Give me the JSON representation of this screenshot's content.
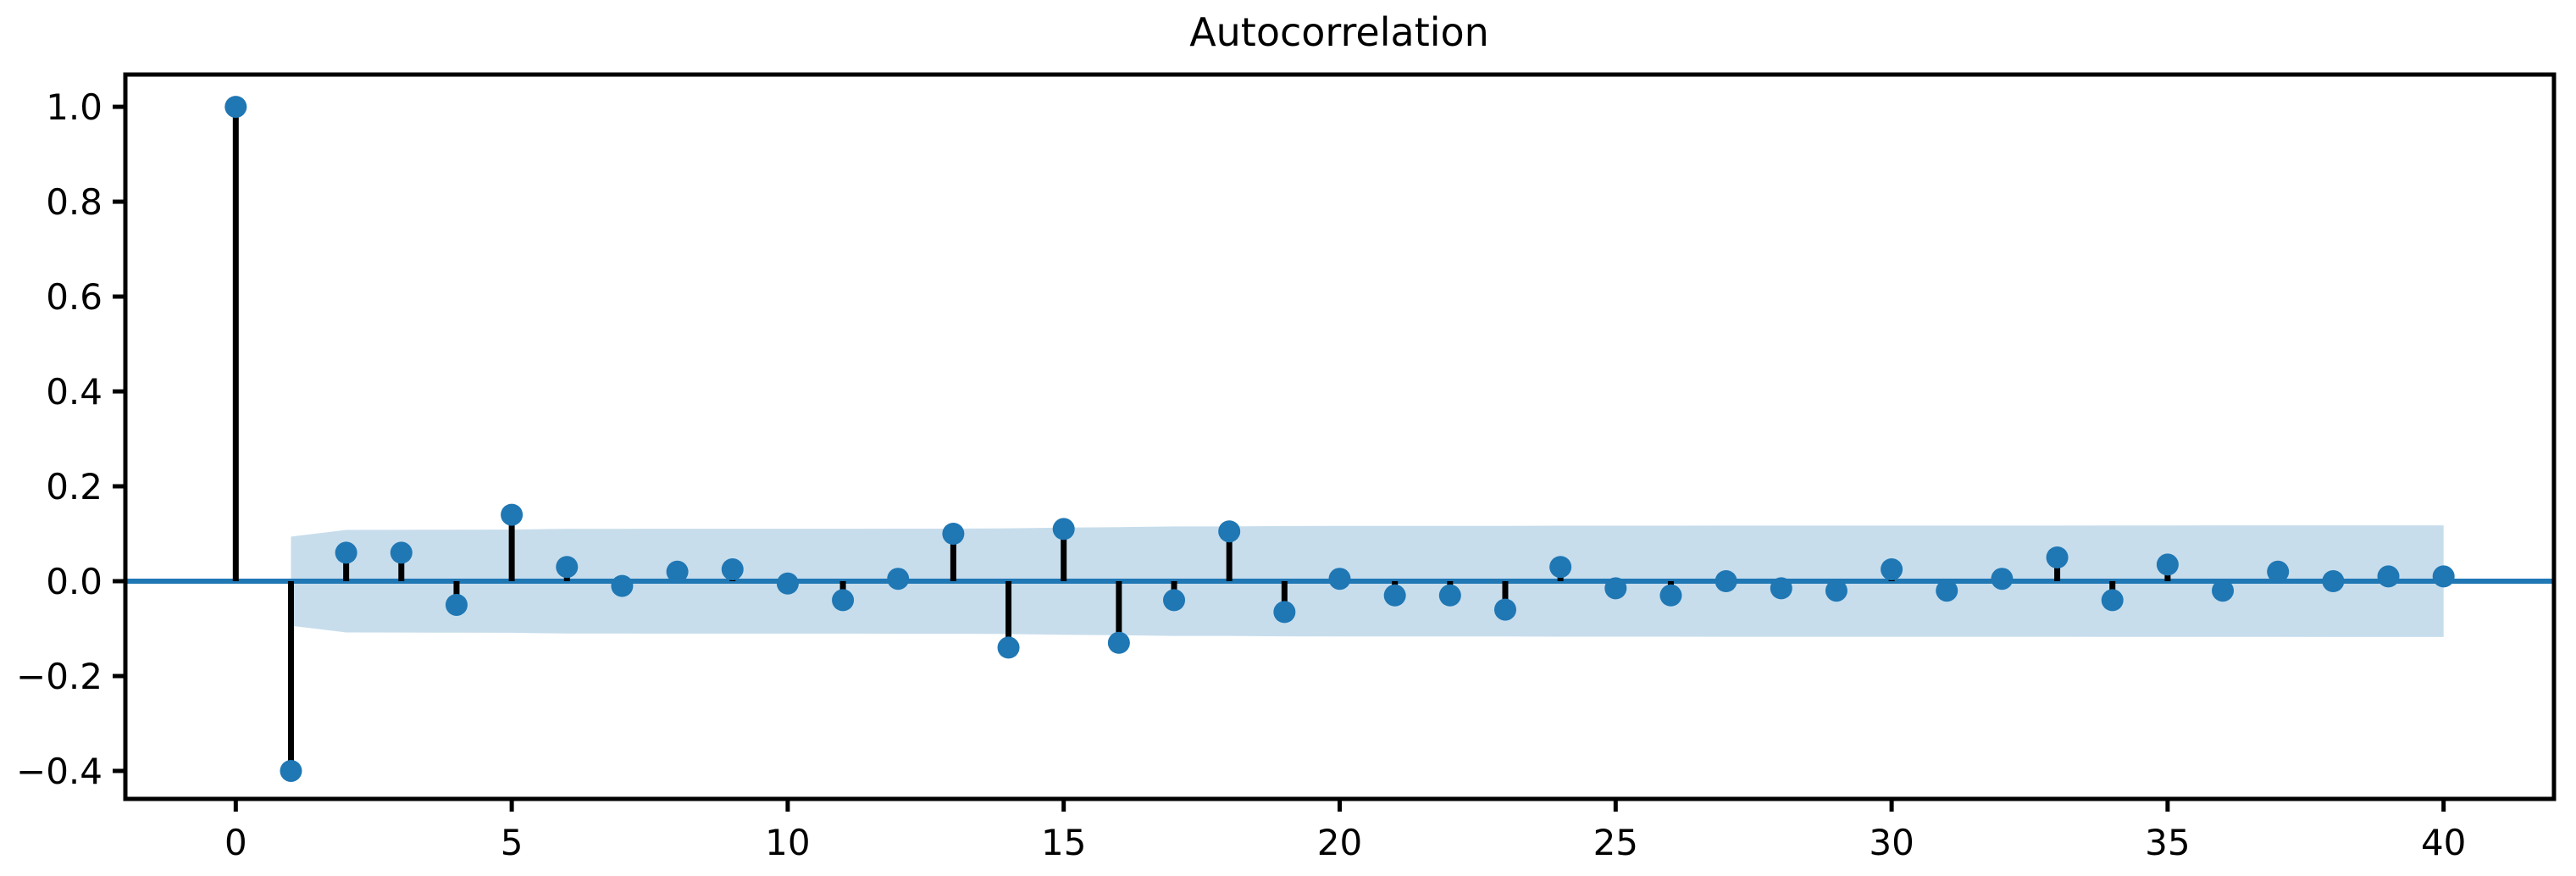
{
  "chart_data": {
    "type": "stem",
    "title": "Autocorrelation",
    "xlabel": "",
    "ylabel": "",
    "x": [
      0,
      1,
      2,
      3,
      4,
      5,
      6,
      7,
      8,
      9,
      10,
      11,
      12,
      13,
      14,
      15,
      16,
      17,
      18,
      19,
      20,
      21,
      22,
      23,
      24,
      25,
      26,
      27,
      28,
      29,
      30,
      31,
      32,
      33,
      34,
      35,
      36,
      37,
      38,
      39,
      40
    ],
    "values": [
      1.0,
      -0.4,
      0.06,
      0.06,
      -0.05,
      0.14,
      0.03,
      -0.01,
      0.02,
      0.025,
      -0.005,
      -0.04,
      0.005,
      0.1,
      -0.14,
      0.11,
      -0.13,
      -0.04,
      0.105,
      -0.065,
      0.005,
      -0.03,
      -0.03,
      -0.06,
      0.03,
      -0.015,
      -0.03,
      0.0,
      -0.015,
      -0.02,
      0.025,
      -0.02,
      0.005,
      0.05,
      -0.04,
      0.035,
      -0.02,
      0.02,
      0.0,
      0.01,
      0.01
    ],
    "confidence_band": {
      "lags": [
        1,
        2,
        3,
        4,
        5,
        6,
        7,
        8,
        9,
        10,
        11,
        12,
        13,
        14,
        15,
        16,
        17,
        18,
        19,
        20,
        21,
        22,
        23,
        24,
        25,
        26,
        27,
        28,
        29,
        30,
        31,
        32,
        33,
        34,
        35,
        36,
        37,
        38,
        39,
        40
      ],
      "upper": [
        0.094,
        0.108,
        0.1083,
        0.1086,
        0.1088,
        0.1104,
        0.1104,
        0.1105,
        0.1105,
        0.1105,
        0.1105,
        0.1107,
        0.1107,
        0.1115,
        0.113,
        0.114,
        0.1153,
        0.1154,
        0.1162,
        0.1165,
        0.1165,
        0.1166,
        0.1167,
        0.1169,
        0.117,
        0.117,
        0.1171,
        0.1171,
        0.1171,
        0.1171,
        0.1172,
        0.1172,
        0.1172,
        0.1174,
        0.1175,
        0.1176,
        0.1176,
        0.1177,
        0.1177,
        0.1177
      ],
      "lower": [
        -0.094,
        -0.108,
        -0.1083,
        -0.1086,
        -0.1088,
        -0.1104,
        -0.1104,
        -0.1105,
        -0.1105,
        -0.1105,
        -0.1105,
        -0.1107,
        -0.1107,
        -0.1115,
        -0.113,
        -0.114,
        -0.1153,
        -0.1154,
        -0.1162,
        -0.1165,
        -0.1165,
        -0.1166,
        -0.1167,
        -0.1169,
        -0.117,
        -0.117,
        -0.1171,
        -0.1171,
        -0.1171,
        -0.1171,
        -0.1172,
        -0.1172,
        -0.1172,
        -0.1174,
        -0.1175,
        -0.1176,
        -0.1176,
        -0.1177,
        -0.1177,
        -0.1177
      ]
    },
    "xticks": [
      0,
      5,
      10,
      15,
      20,
      25,
      30,
      35,
      40
    ],
    "ytick_values": [
      1.0,
      0.8,
      0.6,
      0.4,
      0.2,
      0.0,
      -0.2,
      -0.4
    ],
    "ytick_labels": [
      "1.0",
      "0.8",
      "0.6",
      "0.4",
      "0.2",
      "0.0",
      "−0.2",
      "−0.4"
    ],
    "xlim": [
      -2,
      42
    ],
    "ylim": [
      -0.459,
      1.068
    ],
    "grid": false,
    "legend": null,
    "colors": {
      "marker": "#1f77b4",
      "stem": "#000000",
      "zero_line": "#1f77b4",
      "confidence_band": "#c7ddec",
      "axis": "#000000",
      "text": "#000000",
      "background": "#ffffff"
    }
  }
}
